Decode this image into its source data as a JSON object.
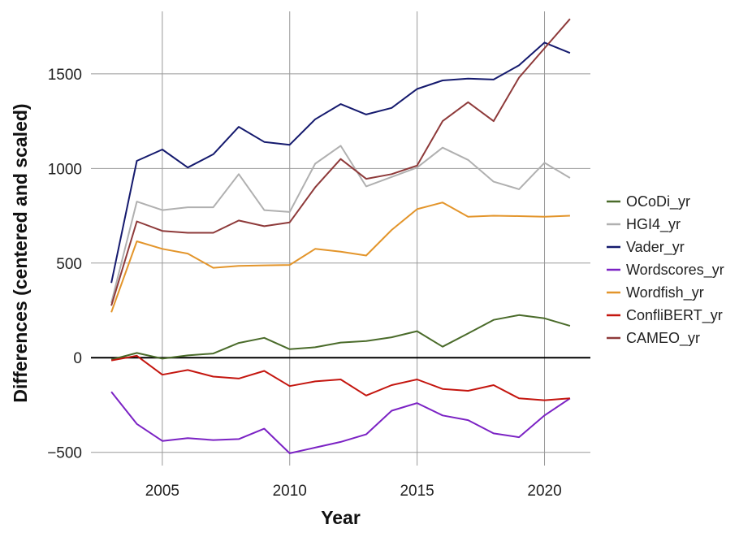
{
  "chart_data": {
    "type": "line",
    "title": "",
    "xlabel": "Year",
    "ylabel": "Differences (centered and scaled)",
    "xlim": [
      2002.2,
      2021.8
    ],
    "ylim": [
      -570,
      1830
    ],
    "x_ticks": [
      2005,
      2010,
      2015,
      2020
    ],
    "y_ticks": [
      -500,
      0,
      500,
      1000,
      1500
    ],
    "y_tick_labels": [
      "−500",
      "0",
      "500",
      "1000",
      "1500"
    ],
    "grid": true,
    "zero_line": true,
    "legend_position": "right",
    "x": [
      2003,
      2004,
      2005,
      2006,
      2007,
      2008,
      2009,
      2010,
      2011,
      2012,
      2013,
      2014,
      2015,
      2016,
      2017,
      2018,
      2019,
      2020,
      2021
    ],
    "series": [
      {
        "name": "OCoDi_yr",
        "color": "#4a6b2a",
        "values": [
          -10,
          25,
          -5,
          12,
          22,
          78,
          105,
          45,
          55,
          80,
          88,
          108,
          140,
          58,
          128,
          200,
          225,
          208,
          168
        ]
      },
      {
        "name": "HGI4_yr",
        "color": "#b0b0b0",
        "values": [
          290,
          825,
          780,
          795,
          795,
          970,
          780,
          770,
          1025,
          1120,
          905,
          955,
          1005,
          1110,
          1045,
          930,
          890,
          1030,
          950
        ]
      },
      {
        "name": "Vader_yr",
        "color": "#151a6e",
        "values": [
          395,
          1040,
          1100,
          1005,
          1075,
          1220,
          1140,
          1125,
          1260,
          1340,
          1285,
          1320,
          1420,
          1465,
          1475,
          1470,
          1545,
          1665,
          1610
        ]
      },
      {
        "name": "Wordscores_yr",
        "color": "#7b22c4",
        "values": [
          -180,
          -350,
          -440,
          -425,
          -435,
          -430,
          -375,
          -505,
          -475,
          -445,
          -405,
          -280,
          -240,
          -305,
          -330,
          -400,
          -420,
          -305,
          -215
        ]
      },
      {
        "name": "Wordfish_yr",
        "color": "#e3952b",
        "values": [
          240,
          615,
          575,
          550,
          475,
          485,
          488,
          490,
          575,
          560,
          540,
          675,
          785,
          820,
          745,
          750,
          748,
          745,
          750
        ]
      },
      {
        "name": "ConfliBERT_yr",
        "color": "#c4160f",
        "values": [
          -15,
          10,
          -90,
          -65,
          -100,
          -110,
          -70,
          -150,
          -125,
          -115,
          -200,
          -145,
          -115,
          -165,
          -175,
          -145,
          -215,
          -225,
          -215
        ]
      },
      {
        "name": "CAMEO_yr",
        "color": "#8e3a3a",
        "values": [
          275,
          720,
          670,
          660,
          660,
          725,
          695,
          715,
          900,
          1050,
          945,
          970,
          1015,
          1250,
          1350,
          1250,
          1480,
          1635,
          1790
        ]
      }
    ]
  }
}
